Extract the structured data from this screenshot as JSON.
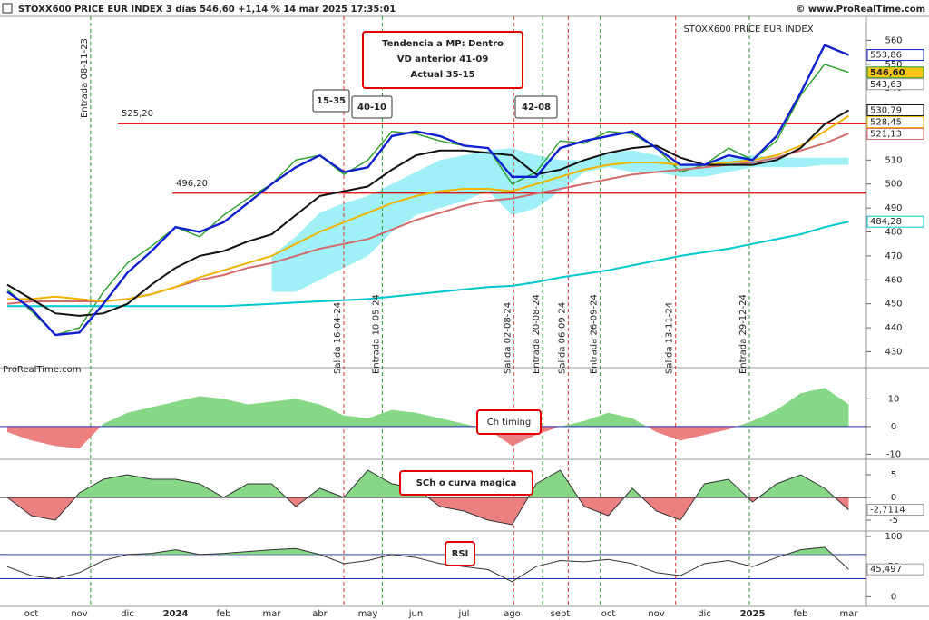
{
  "header": {
    "title": "STOXX600 PRICE EUR INDEX 3 días 546,60 +1,14 % 14 mar 2025 17:35:01",
    "source": "© www.ProRealTime.com"
  },
  "chart_data": [
    {
      "type": "line",
      "title": "STOXX600 PRICE EUR INDEX",
      "credit": "ProRealTime.com",
      "ylim": [
        426,
        570
      ],
      "yticks": [
        430,
        440,
        450,
        460,
        470,
        480,
        490,
        500,
        510,
        520,
        530,
        540,
        550,
        560
      ],
      "cloud": {
        "color": "#8eeef6",
        "upper": [
          null,
          null,
          null,
          null,
          null,
          null,
          null,
          null,
          null,
          null,
          null,
          470,
          478,
          488,
          492,
          495,
          500,
          505,
          510,
          512,
          514,
          515,
          512,
          510,
          510,
          513,
          514,
          512,
          508,
          508,
          511,
          512,
          511,
          511,
          511,
          511
        ],
        "lower": [
          null,
          null,
          null,
          null,
          null,
          null,
          null,
          null,
          null,
          null,
          null,
          455,
          455,
          460,
          465,
          470,
          480,
          487,
          490,
          493,
          497,
          487,
          490,
          497,
          505,
          507,
          505,
          505,
          503,
          503,
          505,
          507,
          507,
          507,
          508,
          508
        ]
      },
      "series": [
        {
          "color": "#2aa02a",
          "values": [
            456,
            447,
            437,
            440,
            455,
            467,
            474,
            482,
            478,
            487,
            494,
            500,
            510,
            512,
            504,
            510,
            522,
            521,
            518,
            516,
            515,
            500,
            505,
            518,
            517,
            522,
            521,
            515,
            505,
            508,
            515,
            510,
            518,
            537,
            550,
            546.6
          ],
          "last_label": "546,60",
          "label_fill": "#f5c518"
        },
        {
          "color": "#00c8d0",
          "values": [
            449,
            449,
            449,
            449,
            449,
            449,
            449,
            449,
            449,
            449,
            449.5,
            450,
            450.5,
            451,
            451.5,
            452,
            453,
            454,
            455,
            456,
            457,
            457.5,
            459,
            461,
            462.5,
            464,
            466,
            468,
            470,
            471.5,
            473,
            475,
            477,
            479,
            482,
            484.28
          ],
          "last_label": "484,28"
        },
        {
          "color": "#d46a6a",
          "values": [
            450,
            451,
            451,
            451,
            451,
            452,
            454,
            457,
            460,
            462,
            465,
            467,
            470,
            473,
            475,
            477,
            481,
            485,
            488,
            491,
            493,
            494,
            496,
            498,
            500,
            502,
            504,
            505,
            506,
            507,
            508,
            509,
            511,
            514,
            517,
            521.13
          ],
          "last_label": "521,13"
        },
        {
          "color": "#f0b400",
          "values": [
            452,
            452,
            453,
            452,
            451,
            452,
            454,
            457,
            461,
            464,
            467,
            470,
            475,
            480,
            484,
            488,
            492,
            495,
            497,
            498,
            498,
            497,
            500,
            503,
            506,
            508,
            509,
            509,
            508,
            508,
            509,
            510,
            512,
            516,
            522,
            528.45
          ],
          "last_label": "528,45"
        },
        {
          "color": "#111111",
          "values": [
            458,
            452,
            446,
            445,
            446,
            450,
            458,
            465,
            470,
            472,
            476,
            479,
            487,
            495,
            497,
            499,
            506,
            512,
            514,
            514,
            513,
            512,
            504,
            506,
            510,
            513,
            515,
            516,
            511,
            508,
            508,
            508,
            510,
            515,
            525,
            530.79
          ],
          "last_label": "530,79"
        },
        {
          "color": "#1020d0",
          "values": [
            455,
            448,
            437,
            438,
            450,
            463,
            472,
            482,
            480,
            484,
            492,
            500,
            507,
            512,
            505,
            507,
            520,
            522,
            520,
            516,
            515,
            503,
            503,
            515,
            518,
            520,
            522,
            515,
            508,
            508,
            512,
            510,
            520,
            538,
            558,
            553.86
          ],
          "last_label": "553,86"
        }
      ],
      "markers": [
        {
          "value": 543.63,
          "label": "543,63"
        }
      ],
      "levels": [
        {
          "value": 525.2,
          "label": "525,20"
        },
        {
          "value": 496.2,
          "label": "496,20"
        }
      ],
      "level_color": "#e00000",
      "signals": [
        {
          "label": "Entrada 08-11-23",
          "color": "#2a9a2a"
        },
        {
          "label": "Salida 16-04-24",
          "color": "#e03030"
        },
        {
          "label": "Entrada 10-05-24",
          "color": "#2a9a2a"
        },
        {
          "label": "Salida 02-08-24",
          "color": "#e03030"
        },
        {
          "label": "Entrada 20-08-24",
          "color": "#2a9a2a"
        },
        {
          "label": "Salida 06-09-24",
          "color": "#e03030"
        },
        {
          "label": "Entrada 26-09-24",
          "color": "#2a9a2a"
        },
        {
          "label": "Salida 13-11-24",
          "color": "#e03030"
        },
        {
          "label": "Entrada 29-12-24",
          "color": "#2a9a2a"
        }
      ],
      "boxes": [
        {
          "text": "15-35",
          "color": "#c00000"
        },
        {
          "text": "40-10",
          "color": "#1a6a1a"
        },
        {
          "text": "42-08",
          "color": "#1a6a1a"
        }
      ],
      "note": [
        "Tendencia a MP: Dentro",
        "VD anterior 41-09",
        "Actual 35-15"
      ]
    },
    {
      "type": "area",
      "title": "Ch timing",
      "ylim": [
        -11.5,
        19
      ],
      "yticks": [
        -10,
        0,
        10
      ],
      "pos_color": "#86d886",
      "neg_color": "#ec8080",
      "zero_color": "#2233aa",
      "values": [
        -2,
        -5,
        -7,
        -8,
        1,
        5,
        7,
        9,
        11,
        10,
        8,
        9,
        10,
        8,
        4,
        3,
        6,
        5,
        3,
        1,
        -1,
        -7,
        -3,
        0,
        2,
        5,
        3,
        -2,
        -5,
        -3,
        -1,
        2,
        6,
        12,
        14,
        8
      ]
    },
    {
      "type": "area",
      "title": "SCh o curva magica",
      "ylim": [
        -6.8,
        8.2
      ],
      "yticks": [
        -5,
        0,
        5
      ],
      "pos_color": "#86d886",
      "neg_color": "#ec8080",
      "zero_color": "#111111",
      "values": [
        0,
        -4,
        -5,
        1,
        4,
        5,
        4,
        4,
        3,
        0,
        3,
        3,
        -2,
        2,
        0,
        6,
        3,
        2,
        -2,
        -3,
        -5,
        -6,
        3,
        6,
        -2,
        -4,
        2,
        -3,
        -5,
        3,
        4,
        -1,
        3,
        5,
        2,
        -2.7114
      ],
      "value_label": "-2,7114"
    },
    {
      "type": "line",
      "title": "RSI",
      "ylim": [
        -16,
        106
      ],
      "yticks": [
        0,
        50,
        100
      ],
      "levels": [
        70,
        30
      ],
      "level_color": "#2233aa",
      "fill_color": "#86d886",
      "values": [
        50,
        35,
        30,
        40,
        60,
        70,
        72,
        78,
        70,
        72,
        75,
        78,
        80,
        70,
        55,
        60,
        70,
        65,
        55,
        50,
        45,
        25,
        50,
        60,
        58,
        62,
        55,
        40,
        35,
        55,
        60,
        50,
        65,
        78,
        82,
        45.497
      ],
      "value_label": "45,497",
      "categories": [
        null,
        "oct",
        null,
        "nov",
        null,
        "dic",
        null,
        "2024",
        null,
        "feb",
        null,
        "mar",
        null,
        "abr",
        null,
        "may",
        null,
        "jun",
        null,
        "jul",
        null,
        "ago",
        null,
        "sept",
        null,
        "oct",
        null,
        "nov",
        null,
        "dic",
        null,
        "2025",
        null,
        "feb",
        null,
        "mar"
      ]
    }
  ]
}
